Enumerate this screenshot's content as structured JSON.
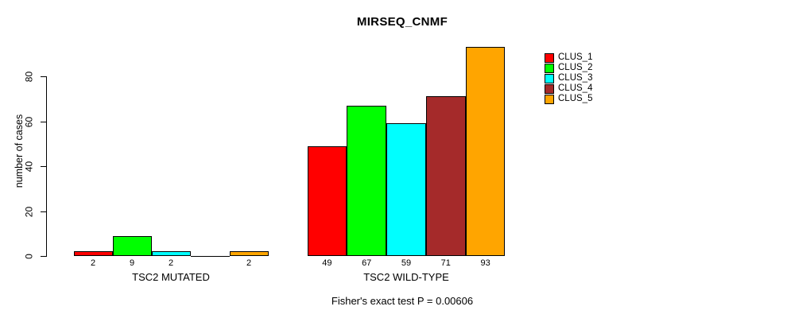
{
  "chart_data": {
    "type": "bar",
    "title": "MIRSEQ_CNMF",
    "xlabel": "",
    "ylabel": "number of cases",
    "annotation": "Fisher's exact test P = 0.00606",
    "categories": [
      "TSC2 MUTATED",
      "TSC2 WILD-TYPE"
    ],
    "series": [
      {
        "name": "CLUS_1",
        "color": "#ff0000",
        "values": [
          2,
          49
        ]
      },
      {
        "name": "CLUS_2",
        "color": "#00ff00",
        "values": [
          9,
          67
        ]
      },
      {
        "name": "CLUS_3",
        "color": "#00ffff",
        "values": [
          2,
          59
        ]
      },
      {
        "name": "CLUS_4",
        "color": "#a52a2a",
        "values": [
          0,
          71
        ]
      },
      {
        "name": "CLUS_5",
        "color": "#ffa500",
        "values": [
          2,
          93
        ]
      }
    ],
    "bar_value_labels": [
      [
        "2",
        "9",
        "2",
        "",
        "2"
      ],
      [
        "49",
        "67",
        "59",
        "71",
        "93"
      ]
    ],
    "yticks": [
      0,
      20,
      40,
      60,
      80
    ],
    "ylim": [
      0,
      93
    ],
    "grid": false,
    "legend_position": "top-right",
    "legend_entries": [
      "CLUS_1",
      "CLUS_2",
      "CLUS_3",
      "CLUS_4",
      "CLUS_5"
    ],
    "axis_color": "#000000",
    "bar_border_color": "#000000",
    "background_color": "#ffffff"
  }
}
